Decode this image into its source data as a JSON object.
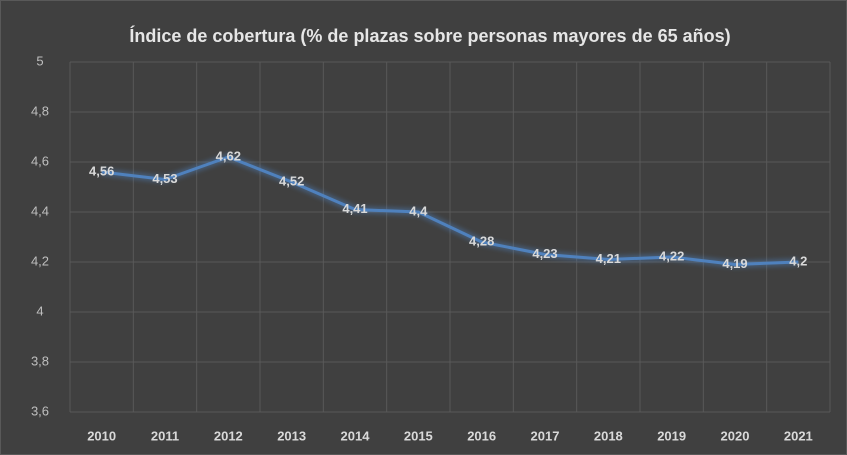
{
  "chart_data": {
    "type": "line",
    "title": "Índice de cobertura (% de plazas sobre personas mayores de 65 años)",
    "categories": [
      "2010",
      "2011",
      "2012",
      "2013",
      "2014",
      "2015",
      "2016",
      "2017",
      "2018",
      "2019",
      "2020",
      "2021"
    ],
    "series": [
      {
        "name": "Índice de cobertura",
        "color": "#4f81bd",
        "values": [
          4.56,
          4.53,
          4.62,
          4.52,
          4.41,
          4.4,
          4.28,
          4.23,
          4.21,
          4.22,
          4.19,
          4.2
        ],
        "value_labels": [
          "4,56",
          "4,53",
          "4,62",
          "4,52",
          "4,41",
          "4,4",
          "4,28",
          "4,23",
          "4,21",
          "4,22",
          "4,19",
          "4,2"
        ]
      }
    ],
    "ylim": [
      3.6,
      5
    ],
    "yticks": [
      {
        "value": 3.6,
        "label": "3,6"
      },
      {
        "value": 3.8,
        "label": "3,8"
      },
      4,
      {
        "value": 4.2,
        "label": "4,2"
      },
      {
        "value": 4.4,
        "label": "4,4"
      },
      {
        "value": 4.6,
        "label": "4,6"
      },
      {
        "value": 4.8,
        "label": "4,8"
      },
      5
    ],
    "grid": true
  }
}
